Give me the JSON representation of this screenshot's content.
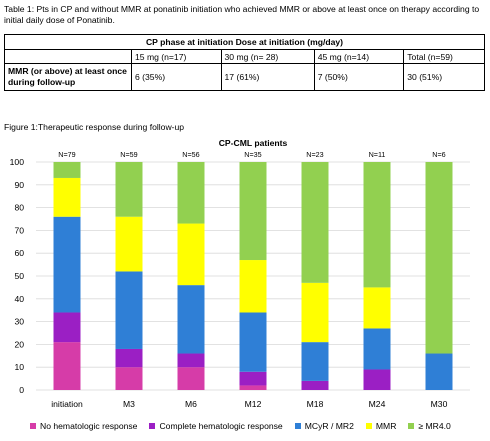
{
  "table": {
    "caption": "Table 1: Pts in CP and without MMR at ponatinib initiation who achieved MMR or above at least once on therapy according to initial daily dose of Ponatinib.",
    "header": "CP phase at initiation  Dose at initiation (mg/day)",
    "columns": [
      "15 mg (n=17)",
      "30 mg (n= 28)",
      "45 mg (n=14)",
      "Total (n=59)"
    ],
    "row_label": "MMR (or above) at least once during follow-up",
    "values": [
      "6 (35%)",
      "17 (61%)",
      "7 (50%)",
      "30 (51%)"
    ]
  },
  "figure_caption": "Figure 1:Therapeutic response during follow-up",
  "chart_data": {
    "type": "bar",
    "stacked": true,
    "title": "CP-CML patients",
    "categories": [
      "initiation",
      "M3",
      "M6",
      "M12",
      "M18",
      "M24",
      "M30"
    ],
    "n_labels": [
      "N=79",
      "N=59",
      "N=56",
      "N=35",
      "N=23",
      "N=11",
      "N=6"
    ],
    "ylim": [
      0,
      100
    ],
    "yticks": [
      0,
      10,
      20,
      30,
      40,
      50,
      60,
      70,
      80,
      90,
      100
    ],
    "grid": true,
    "legend_position": "bottom",
    "series": [
      {
        "name": "No hematologic response",
        "color": "#d63ca8",
        "values": [
          21,
          10,
          10,
          2,
          0,
          0,
          0
        ]
      },
      {
        "name": "Complete hematologic response",
        "color": "#9b1fc4",
        "values": [
          13,
          8,
          6,
          6,
          4,
          9,
          0
        ]
      },
      {
        "name": "MCyR / MR2",
        "color": "#2f7fd6",
        "values": [
          42,
          34,
          30,
          26,
          17,
          18,
          16
        ]
      },
      {
        "name": "MMR",
        "color": "#ffff00",
        "values": [
          17,
          24,
          27,
          23,
          26,
          18,
          0
        ]
      },
      {
        "name": "≥ MR4.0",
        "color": "#92d050",
        "values": [
          7,
          24,
          27,
          43,
          53,
          55,
          84
        ]
      }
    ]
  }
}
